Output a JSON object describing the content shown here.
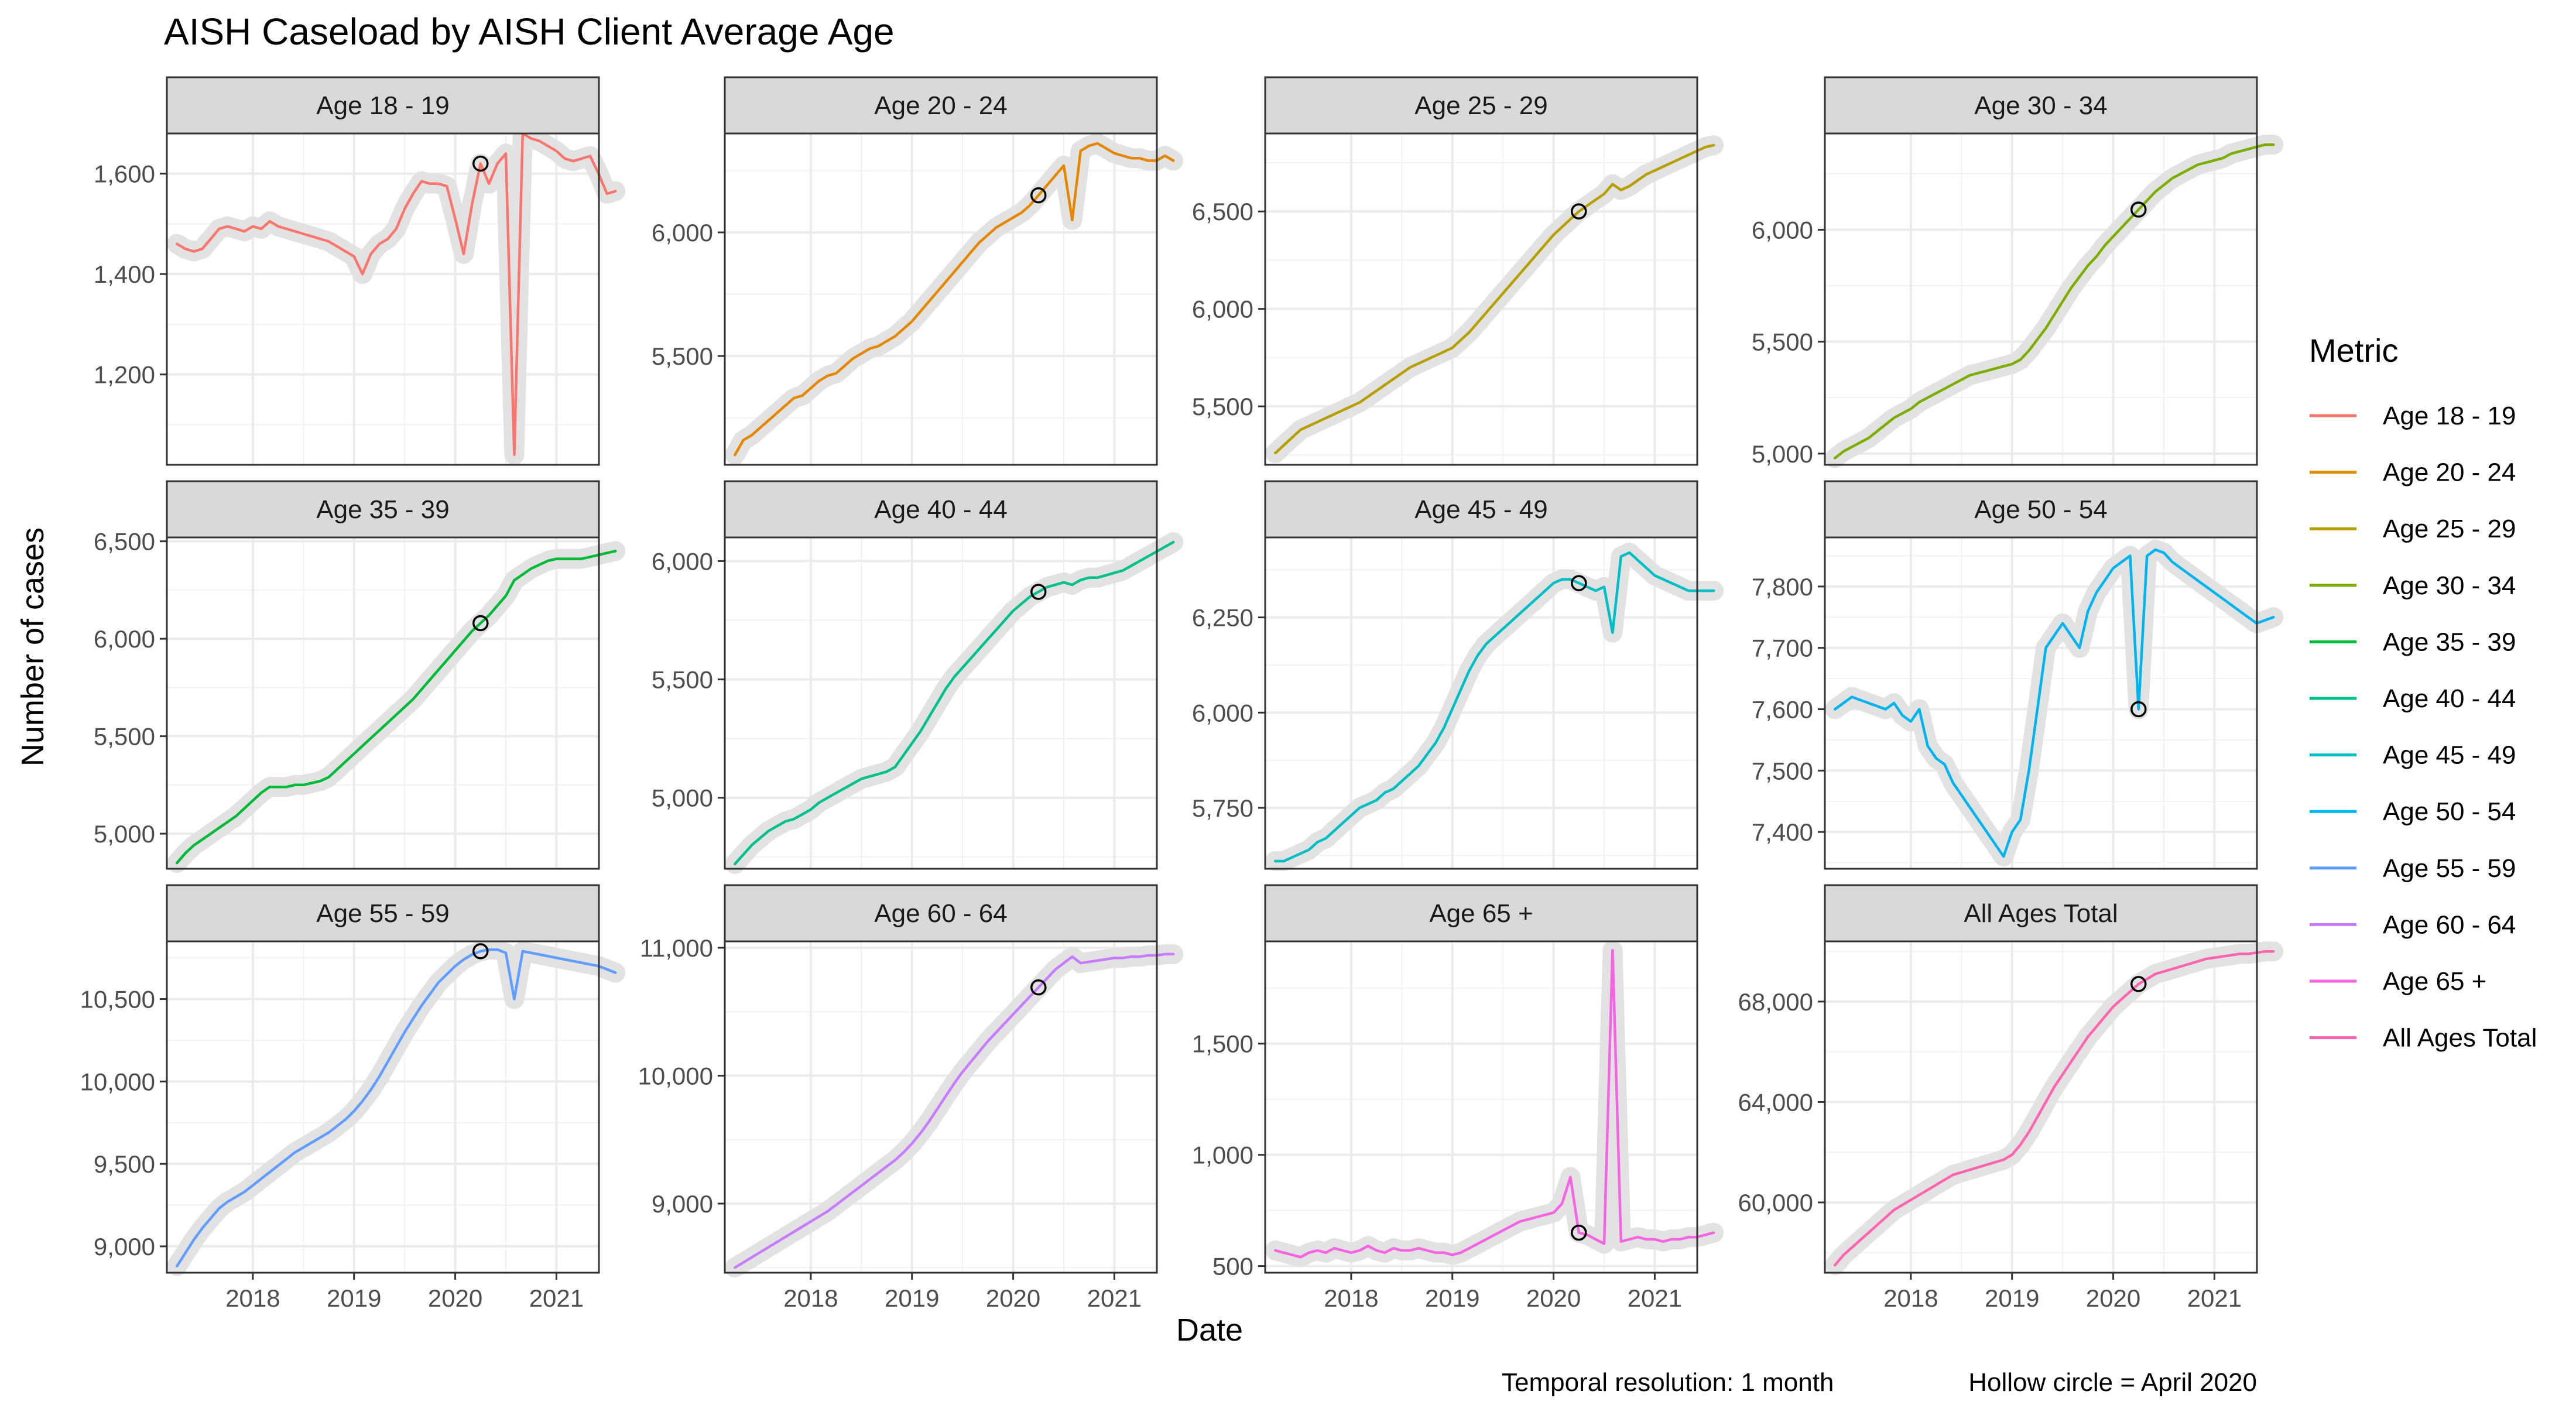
{
  "chart_data": {
    "type": "line",
    "title": "AISH Caseload by AISH Client Average Age",
    "xlabel": "Date",
    "ylabel": "Number of cases",
    "legend_title": "Metric",
    "legend_position": "right",
    "caption_left": "Temporal resolution: 1 month",
    "caption_right": "Hollow circle = April 2020",
    "grid": true,
    "x_ticks": [
      2018,
      2019,
      2020,
      2021
    ],
    "x_range": [
      2017.15,
      2021.42
    ],
    "highlight_x": 2020.25,
    "panels": [
      {
        "name": "Age 18 - 19",
        "color": "#F8766D",
        "ylim": [
          1020,
          1680
        ],
        "yticks": [
          1200,
          1400,
          1600
        ],
        "values": [
          1460,
          1450,
          1445,
          1450,
          1470,
          1490,
          1495,
          1490,
          1485,
          1495,
          1490,
          1505,
          1495,
          1490,
          1485,
          1480,
          1475,
          1470,
          1465,
          1455,
          1445,
          1435,
          1400,
          1440,
          1460,
          1470,
          1490,
          1530,
          1560,
          1585,
          1580,
          1580,
          1575,
          1510,
          1440,
          1540,
          1620,
          1580,
          1620,
          1640,
          1040,
          1680,
          1670,
          1665,
          1655,
          1645,
          1630,
          1625,
          1630,
          1635,
          1600,
          1560,
          1565
        ]
      },
      {
        "name": "Age 20 - 24",
        "color": "#E58700",
        "ylim": [
          5060,
          6400
        ],
        "yticks": [
          5500,
          6000
        ],
        "values": [
          5100,
          5160,
          5180,
          5210,
          5240,
          5270,
          5300,
          5330,
          5340,
          5370,
          5400,
          5420,
          5430,
          5460,
          5490,
          5510,
          5530,
          5540,
          5560,
          5580,
          5610,
          5640,
          5680,
          5720,
          5760,
          5800,
          5840,
          5880,
          5920,
          5960,
          5990,
          6020,
          6040,
          6060,
          6080,
          6110,
          6150,
          6190,
          6230,
          6270,
          6050,
          6330,
          6350,
          6360,
          6340,
          6320,
          6310,
          6300,
          6300,
          6290,
          6290,
          6310,
          6290
        ]
      },
      {
        "name": "Age 25 - 29",
        "color": "#B79F00",
        "ylim": [
          5200,
          6900
        ],
        "yticks": [
          5500,
          6000,
          6500
        ],
        "values": [
          5260,
          5300,
          5340,
          5380,
          5400,
          5420,
          5440,
          5460,
          5480,
          5500,
          5520,
          5550,
          5580,
          5610,
          5640,
          5670,
          5700,
          5720,
          5740,
          5760,
          5780,
          5800,
          5840,
          5880,
          5930,
          5980,
          6030,
          6080,
          6130,
          6180,
          6230,
          6280,
          6330,
          6380,
          6420,
          6460,
          6500,
          6530,
          6560,
          6590,
          6640,
          6610,
          6630,
          6660,
          6690,
          6710,
          6730,
          6750,
          6770,
          6790,
          6810,
          6830,
          6840
        ]
      },
      {
        "name": "Age 30 - 34",
        "color": "#7CAE00",
        "ylim": [
          4950,
          6430
        ],
        "yticks": [
          5000,
          5500,
          6000
        ],
        "values": [
          4980,
          5010,
          5030,
          5050,
          5070,
          5100,
          5130,
          5160,
          5180,
          5200,
          5230,
          5250,
          5270,
          5290,
          5310,
          5330,
          5350,
          5360,
          5370,
          5380,
          5390,
          5400,
          5420,
          5460,
          5510,
          5560,
          5620,
          5680,
          5740,
          5790,
          5840,
          5880,
          5930,
          5970,
          6010,
          6050,
          6090,
          6130,
          6170,
          6200,
          6230,
          6250,
          6270,
          6290,
          6300,
          6310,
          6320,
          6340,
          6350,
          6360,
          6370,
          6380,
          6380
        ]
      },
      {
        "name": "Age 35 - 39",
        "color": "#00BA38",
        "ylim": [
          4820,
          6520
        ],
        "yticks": [
          5000,
          5500,
          6000,
          6500
        ],
        "values": [
          4850,
          4900,
          4940,
          4970,
          5000,
          5030,
          5060,
          5090,
          5130,
          5170,
          5210,
          5240,
          5240,
          5240,
          5250,
          5250,
          5260,
          5270,
          5290,
          5330,
          5370,
          5410,
          5450,
          5490,
          5530,
          5570,
          5610,
          5650,
          5690,
          5740,
          5790,
          5840,
          5890,
          5940,
          5990,
          6040,
          6080,
          6120,
          6170,
          6220,
          6300,
          6330,
          6360,
          6380,
          6400,
          6410,
          6410,
          6410,
          6410,
          6420,
          6430,
          6440,
          6450
        ]
      },
      {
        "name": "Age 40 - 44",
        "color": "#00C08B",
        "ylim": [
          4700,
          6100
        ],
        "yticks": [
          5000,
          5500,
          6000
        ],
        "values": [
          4720,
          4760,
          4800,
          4830,
          4860,
          4880,
          4900,
          4910,
          4930,
          4950,
          4980,
          5000,
          5020,
          5040,
          5060,
          5080,
          5090,
          5100,
          5110,
          5130,
          5180,
          5230,
          5280,
          5340,
          5400,
          5460,
          5510,
          5550,
          5590,
          5630,
          5670,
          5710,
          5750,
          5790,
          5820,
          5850,
          5870,
          5890,
          5900,
          5910,
          5900,
          5920,
          5930,
          5930,
          5940,
          5950,
          5960,
          5980,
          6000,
          6020,
          6040,
          6060,
          6080
        ]
      },
      {
        "name": "Age 45 - 49",
        "color": "#00BFC4",
        "ylim": [
          5590,
          6460
        ],
        "yticks": [
          5750,
          6000,
          6250
        ],
        "values": [
          5610,
          5610,
          5620,
          5630,
          5640,
          5660,
          5670,
          5690,
          5710,
          5730,
          5750,
          5760,
          5770,
          5790,
          5800,
          5820,
          5840,
          5860,
          5890,
          5920,
          5960,
          6010,
          6060,
          6110,
          6150,
          6180,
          6200,
          6220,
          6240,
          6260,
          6280,
          6300,
          6320,
          6340,
          6350,
          6350,
          6340,
          6330,
          6320,
          6330,
          6210,
          6410,
          6420,
          6400,
          6380,
          6360,
          6350,
          6340,
          6330,
          6320,
          6320,
          6320,
          6320
        ]
      },
      {
        "name": "Age 50 - 54",
        "color": "#00B4F0",
        "ylim": [
          7340,
          7880
        ],
        "yticks": [
          7400,
          7500,
          7600,
          7700,
          7800
        ],
        "values": [
          7600,
          7610,
          7620,
          7615,
          7610,
          7605,
          7600,
          7610,
          7590,
          7580,
          7600,
          7540,
          7520,
          7510,
          7480,
          7460,
          7440,
          7420,
          7400,
          7380,
          7360,
          7400,
          7420,
          7500,
          7600,
          7700,
          7720,
          7740,
          7720,
          7700,
          7760,
          7790,
          7810,
          7830,
          7840,
          7850,
          7600,
          7850,
          7860,
          7855,
          7840,
          7830,
          7820,
          7810,
          7800,
          7790,
          7780,
          7770,
          7760,
          7750,
          7740,
          7745,
          7750
        ]
      },
      {
        "name": "Age 55 - 59",
        "color": "#619CFF",
        "ylim": [
          8840,
          10850
        ],
        "yticks": [
          9000,
          9500,
          10000,
          10500
        ],
        "values": [
          8880,
          8960,
          9040,
          9110,
          9170,
          9230,
          9270,
          9300,
          9330,
          9370,
          9410,
          9450,
          9490,
          9530,
          9570,
          9600,
          9630,
          9660,
          9690,
          9730,
          9770,
          9820,
          9880,
          9950,
          10030,
          10120,
          10210,
          10300,
          10380,
          10460,
          10530,
          10600,
          10650,
          10700,
          10740,
          10770,
          10790,
          10800,
          10800,
          10780,
          10500,
          10790,
          10780,
          10770,
          10760,
          10750,
          10740,
          10730,
          10720,
          10710,
          10700,
          10680,
          10660
        ]
      },
      {
        "name": "Age 60 - 64",
        "color": "#C77CFF",
        "ylim": [
          8460,
          11050
        ],
        "yticks": [
          9000,
          10000,
          11000
        ],
        "values": [
          8500,
          8540,
          8580,
          8620,
          8660,
          8700,
          8740,
          8780,
          8820,
          8860,
          8900,
          8940,
          8990,
          9040,
          9090,
          9140,
          9190,
          9240,
          9290,
          9340,
          9400,
          9470,
          9550,
          9640,
          9740,
          9840,
          9940,
          10030,
          10110,
          10190,
          10270,
          10340,
          10410,
          10480,
          10550,
          10620,
          10690,
          10760,
          10830,
          10880,
          10930,
          10880,
          10890,
          10900,
          10910,
          10920,
          10920,
          10930,
          10930,
          10940,
          10940,
          10950,
          10950
        ]
      },
      {
        "name": "Age 65 +",
        "color": "#F564E3",
        "ylim": [
          470,
          1960
        ],
        "yticks": [
          500,
          1000,
          1500
        ],
        "values": [
          570,
          560,
          550,
          540,
          560,
          570,
          560,
          580,
          570,
          560,
          570,
          590,
          570,
          560,
          580,
          570,
          570,
          580,
          570,
          560,
          560,
          550,
          560,
          580,
          600,
          620,
          640,
          660,
          680,
          700,
          710,
          720,
          730,
          740,
          780,
          900,
          650,
          640,
          620,
          600,
          1920,
          610,
          620,
          630,
          620,
          620,
          610,
          620,
          620,
          630,
          630,
          640,
          650
        ]
      },
      {
        "name": "All Ages Total",
        "color": "#FF64B0",
        "ylim": [
          57200,
          70400
        ],
        "yticks": [
          60000,
          64000,
          68000
        ],
        "values": [
          57500,
          57900,
          58200,
          58500,
          58800,
          59100,
          59400,
          59700,
          59900,
          60100,
          60300,
          60500,
          60700,
          60900,
          61100,
          61200,
          61300,
          61400,
          61500,
          61600,
          61700,
          61900,
          62300,
          62800,
          63400,
          64000,
          64600,
          65100,
          65600,
          66100,
          66600,
          67000,
          67400,
          67800,
          68100,
          68400,
          68700,
          68900,
          69100,
          69200,
          69300,
          69400,
          69500,
          69600,
          69700,
          69750,
          69800,
          69850,
          69900,
          69900,
          69950,
          70000,
          70000
        ]
      }
    ]
  }
}
